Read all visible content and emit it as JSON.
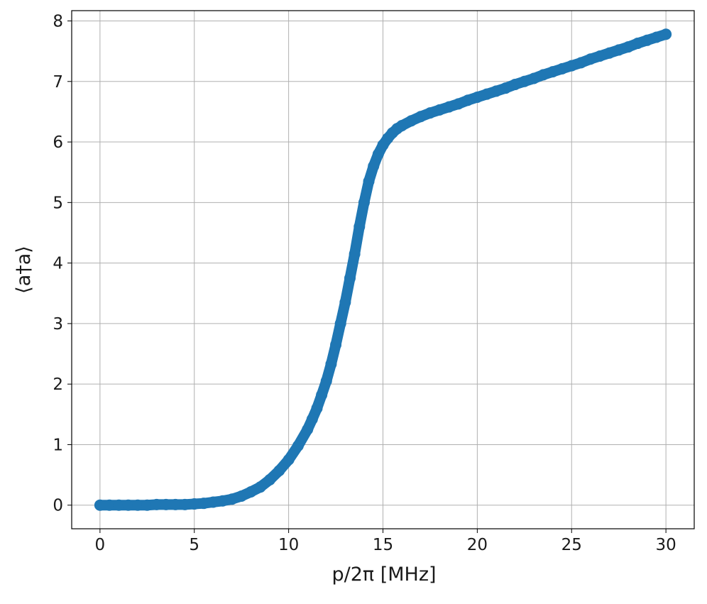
{
  "chart_data": {
    "type": "scatter",
    "x_label": "p/2π [MHz]",
    "y_label": "⟨a†a⟩",
    "xlim": [
      -1.5,
      31.5
    ],
    "ylim": [
      -0.39,
      8.17
    ],
    "xticks": [
      0,
      5,
      10,
      15,
      20,
      25,
      30
    ],
    "yticks": [
      0,
      1,
      2,
      3,
      4,
      5,
      6,
      7,
      8
    ],
    "grid": true,
    "series": [
      {
        "color": "#1f77b4",
        "x": [
          0,
          0.5,
          1,
          1.5,
          2,
          2.5,
          3,
          3.5,
          4,
          4.5,
          5,
          5.5,
          6,
          6.5,
          7,
          7.5,
          8,
          8.5,
          9,
          9.5,
          10,
          10.5,
          11,
          11.25,
          11.5,
          11.75,
          12,
          12.25,
          12.5,
          12.75,
          13,
          13.25,
          13.5,
          13.75,
          14,
          14.25,
          14.5,
          14.75,
          15,
          15.25,
          15.5,
          15.75,
          16,
          16.5,
          17,
          17.5,
          18,
          18.5,
          19,
          19.5,
          20,
          20.5,
          21,
          21.5,
          22,
          22.5,
          23,
          23.5,
          24,
          24.5,
          25,
          25.5,
          26,
          26.5,
          27,
          27.5,
          28,
          28.5,
          29,
          29.5,
          30
        ],
        "values": [
          0,
          0,
          0,
          0,
          0,
          0,
          0.01,
          0.01,
          0.01,
          0.01,
          0.02,
          0.03,
          0.05,
          0.07,
          0.1,
          0.15,
          0.22,
          0.3,
          0.42,
          0.57,
          0.75,
          0.98,
          1.25,
          1.42,
          1.6,
          1.82,
          2.05,
          2.33,
          2.65,
          3.0,
          3.35,
          3.75,
          4.15,
          4.6,
          5.0,
          5.35,
          5.6,
          5.8,
          5.95,
          6.06,
          6.15,
          6.22,
          6.27,
          6.35,
          6.42,
          6.48,
          6.53,
          6.58,
          6.63,
          6.69,
          6.74,
          6.79,
          6.84,
          6.89,
          6.95,
          7.0,
          7.05,
          7.11,
          7.16,
          7.21,
          7.26,
          7.31,
          7.37,
          7.42,
          7.47,
          7.52,
          7.57,
          7.63,
          7.68,
          7.73,
          7.78
        ]
      }
    ]
  }
}
